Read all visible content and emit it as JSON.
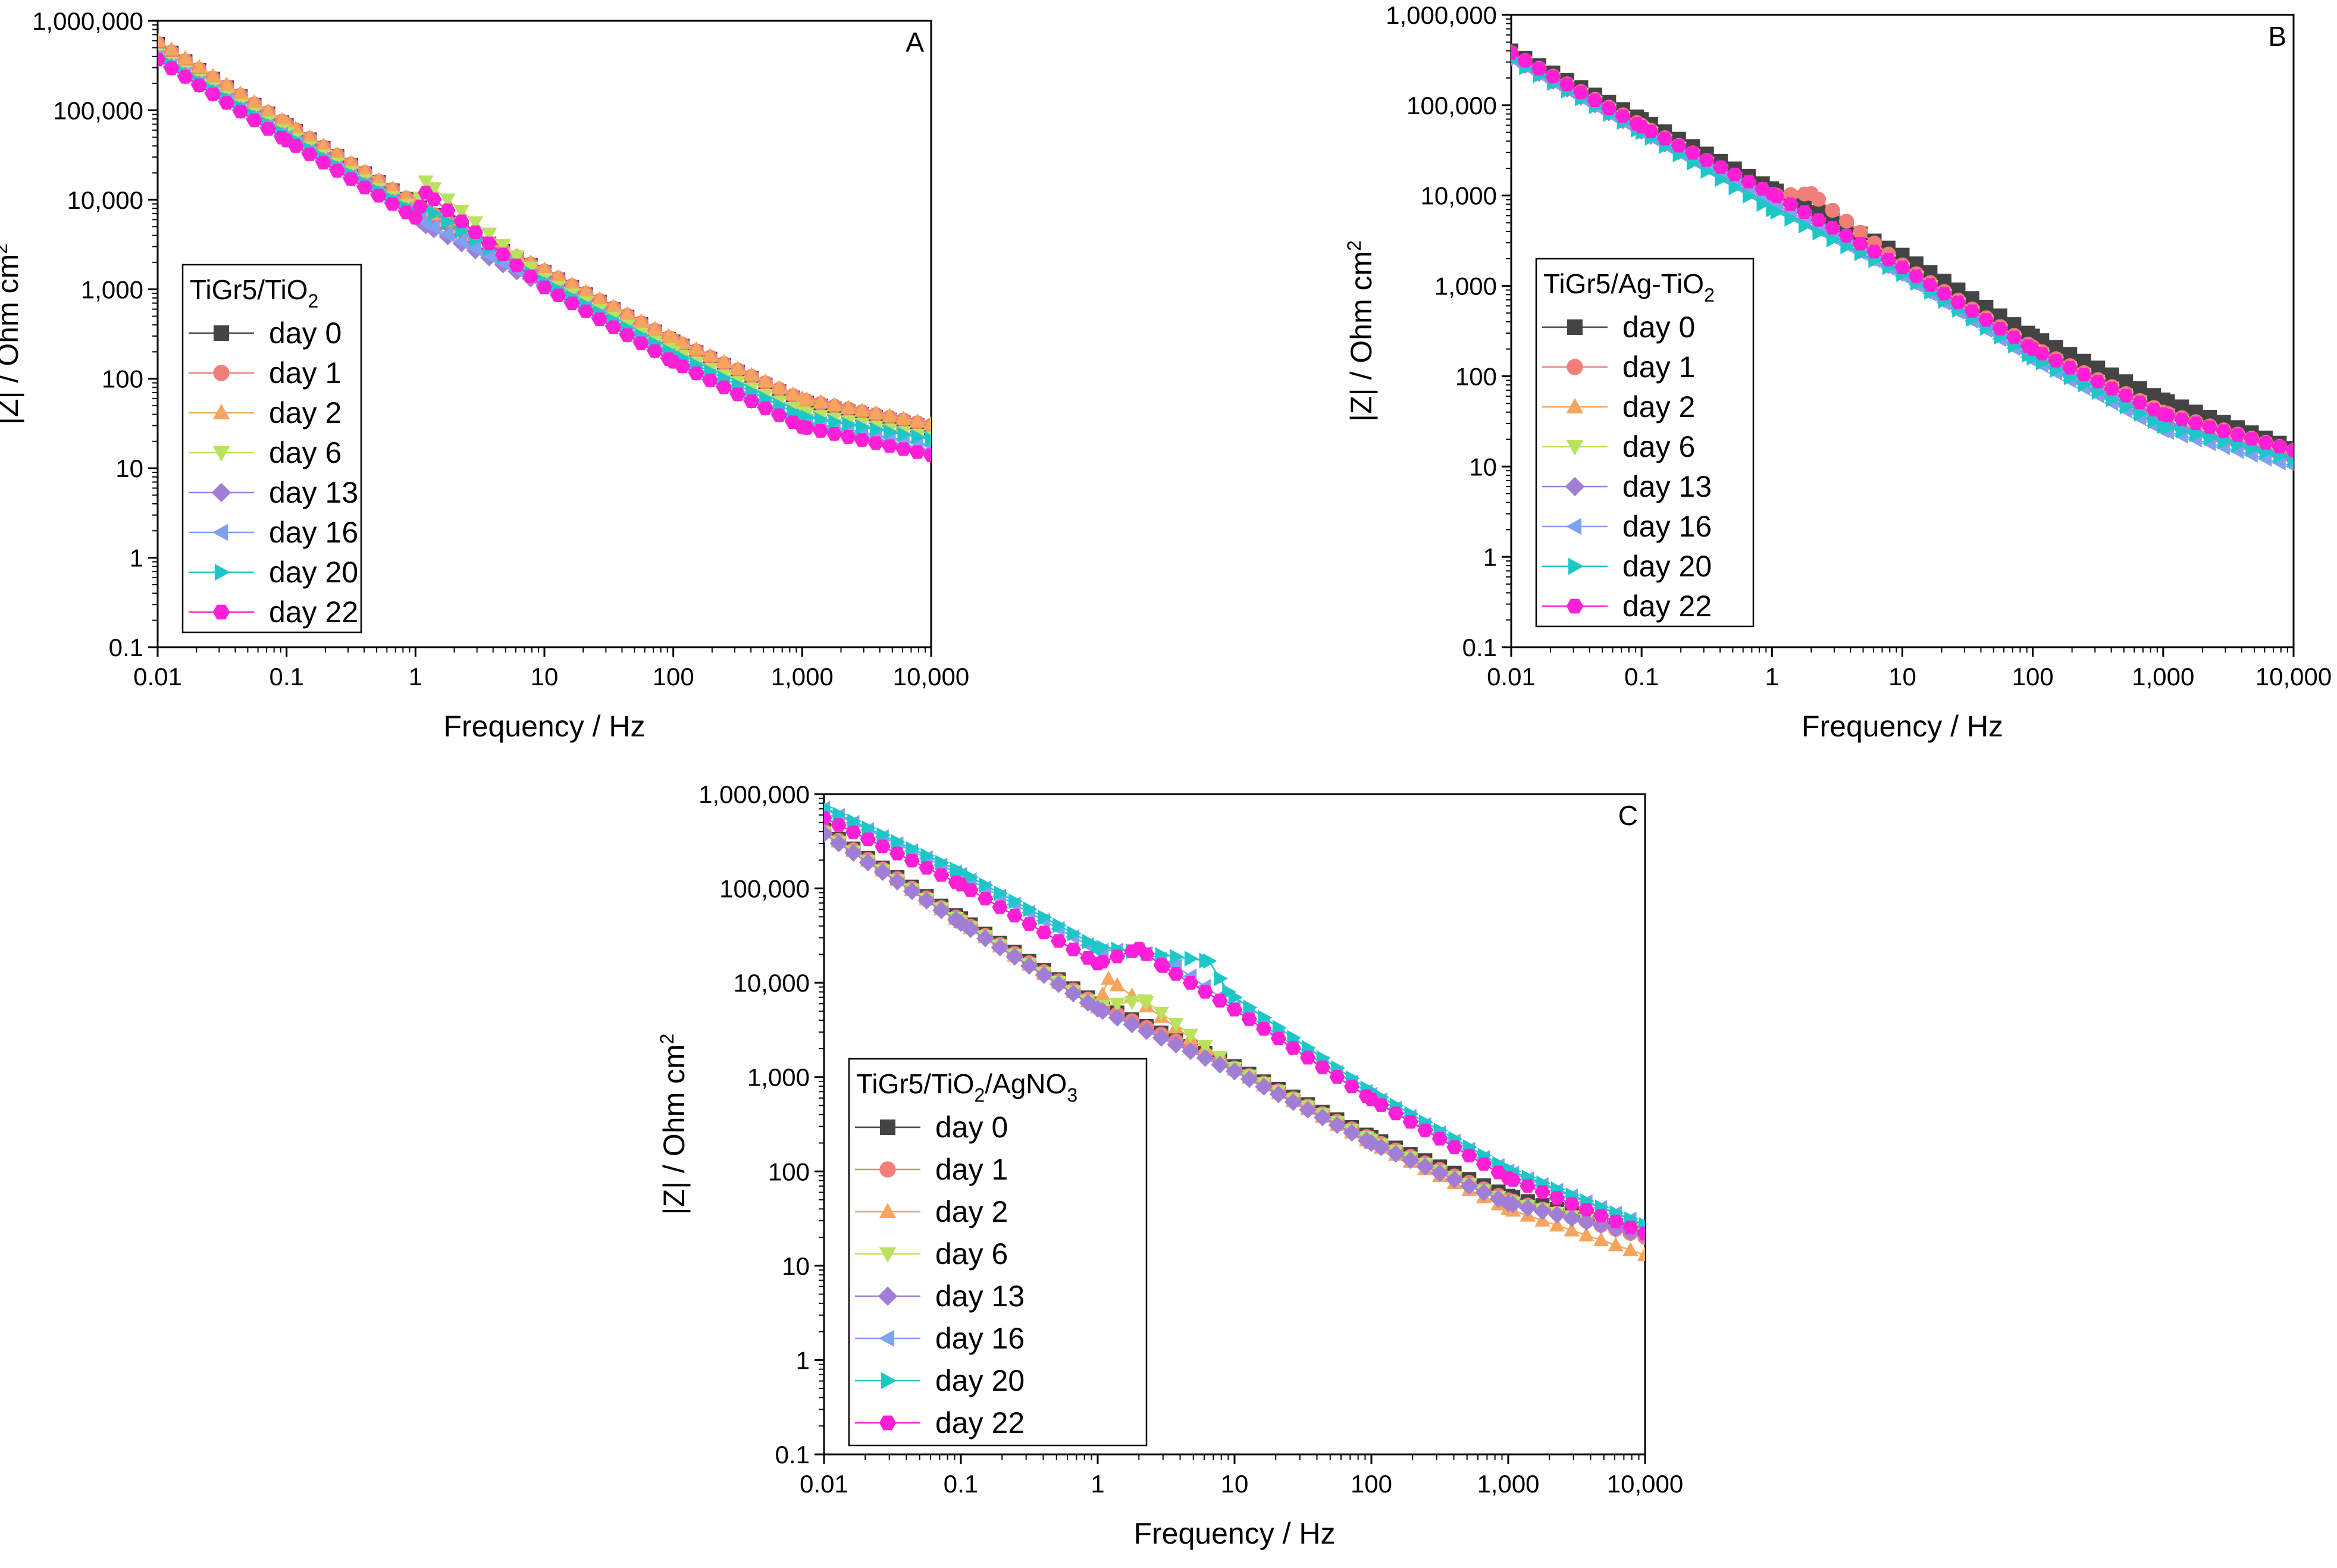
{
  "figure_title": "",
  "chart_data": [
    {
      "type": "scatter",
      "panel": "A",
      "legend_title": {
        "base": "TiGr5/TiO",
        "sub1": "2",
        "mid": "",
        "sub2": ""
      },
      "xlabel": "Frequency / Hz",
      "ylabel": {
        "base": "|Z| / Ohm cm",
        "sup": "2"
      },
      "xscale": "log",
      "yscale": "log",
      "xlim": [
        0.01,
        10000
      ],
      "ylim": [
        0.1,
        1000000
      ],
      "x_ticks": [
        "0.01",
        "0.1",
        "1",
        "10",
        "100",
        "1,000",
        "10,000"
      ],
      "y_ticks": [
        "0.1",
        "1",
        "10",
        "100",
        "1,000",
        "10,000",
        "100,000",
        "1,000,000"
      ],
      "legend_placement": "middle-left",
      "series": [
        {
          "name": "day 0",
          "color": "#444444",
          "marker": "square",
          "points": [
            [
              0.01,
              550000
            ],
            [
              0.1,
              68000
            ],
            [
              1,
              8800
            ],
            [
              1.2,
              7500
            ],
            [
              10,
              1550
            ],
            [
              100,
              260
            ],
            [
              1000,
              55
            ],
            [
              10000,
              28
            ]
          ]
        },
        {
          "name": "day 1",
          "color": "#f07f79",
          "marker": "circle",
          "points": [
            [
              0.01,
              560000
            ],
            [
              0.1,
              70000
            ],
            [
              1,
              9000
            ],
            [
              1.2,
              7600
            ],
            [
              10,
              1600
            ],
            [
              100,
              270
            ],
            [
              1000,
              58
            ],
            [
              10000,
              30
            ]
          ]
        },
        {
          "name": "day 2",
          "color": "#f5a55d",
          "marker": "triangle-up",
          "points": [
            [
              0.01,
              600000
            ],
            [
              0.1,
              72000
            ],
            [
              1,
              9200
            ],
            [
              1.2,
              7700
            ],
            [
              10,
              1650
            ],
            [
              100,
              280
            ],
            [
              1000,
              60
            ],
            [
              10000,
              31
            ]
          ]
        },
        {
          "name": "day 6",
          "color": "#b9e35f",
          "marker": "triangle-down",
          "points": [
            [
              0.01,
              420000
            ],
            [
              0.1,
              55000
            ],
            [
              1,
              7500
            ],
            [
              1.2,
              16000
            ],
            [
              10,
              1300
            ],
            [
              100,
              200
            ],
            [
              1000,
              42
            ],
            [
              10000,
              22
            ]
          ]
        },
        {
          "name": "day 13",
          "color": "#a17ed6",
          "marker": "diamond",
          "points": [
            [
              0.01,
              380000
            ],
            [
              0.1,
              48000
            ],
            [
              1,
              6500
            ],
            [
              1.2,
              5200
            ],
            [
              10,
              1100
            ],
            [
              100,
              160
            ],
            [
              1000,
              30
            ],
            [
              10000,
              15
            ]
          ]
        },
        {
          "name": "day 16",
          "color": "#7fa2f0",
          "marker": "triangle-left",
          "points": [
            [
              0.01,
              390000
            ],
            [
              0.1,
              50000
            ],
            [
              1,
              6800
            ],
            [
              1.2,
              5500
            ],
            [
              10,
              1150
            ],
            [
              100,
              170
            ],
            [
              1000,
              34
            ],
            [
              10000,
              18
            ]
          ]
        },
        {
          "name": "day 20",
          "color": "#1ec7c7",
          "marker": "triangle-right",
          "points": [
            [
              0.01,
              400000
            ],
            [
              0.1,
              52000
            ],
            [
              1,
              7000
            ],
            [
              1.2,
              8000
            ],
            [
              10,
              1200
            ],
            [
              100,
              190
            ],
            [
              1000,
              38
            ],
            [
              10000,
              21
            ]
          ]
        },
        {
          "name": "day 22",
          "color": "#ff1fd6",
          "marker": "hexagon",
          "points": [
            [
              0.01,
              370000
            ],
            [
              0.1,
              46000
            ],
            [
              1,
              6300
            ],
            [
              1.2,
              12000
            ],
            [
              10,
              1050
            ],
            [
              100,
              155
            ],
            [
              1000,
              29
            ],
            [
              10000,
              14
            ]
          ]
        }
      ]
    },
    {
      "type": "scatter",
      "panel": "B",
      "legend_title": {
        "base": "TiGr5/Ag-TiO",
        "sub1": "2",
        "mid": "",
        "sub2": ""
      },
      "xlabel": "Frequency / Hz",
      "ylabel": {
        "base": "|Z| / Ohm cm",
        "sup": "2"
      },
      "xscale": "log",
      "yscale": "log",
      "xlim": [
        0.01,
        10000
      ],
      "ylim": [
        0.1,
        1000000
      ],
      "x_ticks": [
        "0.01",
        "0.1",
        "1",
        "10",
        "100",
        "1,000",
        "10,000"
      ],
      "y_ticks": [
        "0.1",
        "1",
        "10",
        "100",
        "1,000",
        "10,000",
        "100,000",
        "1,000,000"
      ],
      "legend_placement": "middle-left",
      "series": [
        {
          "name": "day 0",
          "color": "#444444",
          "marker": "square",
          "points": [
            [
              0.01,
              400000
            ],
            [
              0.1,
              70000
            ],
            [
              1,
              12000
            ],
            [
              10,
              2200
            ],
            [
              100,
              280
            ],
            [
              1000,
              55
            ],
            [
              10000,
              16
            ]
          ]
        },
        {
          "name": "day 1",
          "color": "#f07f79",
          "marker": "circle",
          "points": [
            [
              0.01,
              380000
            ],
            [
              0.1,
              60000
            ],
            [
              1,
              10000
            ],
            [
              2,
              10500
            ],
            [
              10,
              1700
            ],
            [
              100,
              210
            ],
            [
              1000,
              40
            ],
            [
              10000,
              15
            ]
          ]
        },
        {
          "name": "day 2",
          "color": "#f5a55d",
          "marker": "triangle-up",
          "points": [
            [
              0.01,
              370000
            ],
            [
              0.1,
              58000
            ],
            [
              1,
              9500
            ],
            [
              10,
              1600
            ],
            [
              100,
              200
            ],
            [
              1000,
              38
            ],
            [
              10000,
              14
            ]
          ]
        },
        {
          "name": "day 6",
          "color": "#b9e35f",
          "marker": "triangle-down",
          "points": [
            [
              0.01,
              360000
            ],
            [
              0.1,
              56000
            ],
            [
              1,
              9200
            ],
            [
              10,
              1550
            ],
            [
              100,
              190
            ],
            [
              1000,
              36
            ],
            [
              10000,
              13
            ]
          ]
        },
        {
          "name": "day 13",
          "color": "#a17ed6",
          "marker": "diamond",
          "points": [
            [
              0.01,
              340000
            ],
            [
              0.1,
              52000
            ],
            [
              1,
              8500
            ],
            [
              10,
              1400
            ],
            [
              100,
              170
            ],
            [
              1000,
              30
            ],
            [
              10000,
              12
            ]
          ]
        },
        {
          "name": "day 16",
          "color": "#7fa2f0",
          "marker": "triangle-left",
          "points": [
            [
              0.01,
              330000
            ],
            [
              0.1,
              50000
            ],
            [
              1,
              8000
            ],
            [
              10,
              1300
            ],
            [
              100,
              150
            ],
            [
              1000,
              25
            ],
            [
              10000,
              10
            ]
          ]
        },
        {
          "name": "day 20",
          "color": "#1ec7c7",
          "marker": "triangle-right",
          "points": [
            [
              0.01,
              320000
            ],
            [
              0.1,
              50000
            ],
            [
              1,
              7000
            ],
            [
              10,
              1350
            ],
            [
              100,
              160
            ],
            [
              1000,
              28
            ],
            [
              10000,
              12
            ]
          ]
        },
        {
          "name": "day 22",
          "color": "#ff1fd6",
          "marker": "hexagon",
          "points": [
            [
              0.01,
              380000
            ],
            [
              0.1,
              58000
            ],
            [
              1,
              10500
            ],
            [
              10,
              1600
            ],
            [
              100,
              200
            ],
            [
              1000,
              38
            ],
            [
              10000,
              15
            ]
          ]
        }
      ]
    },
    {
      "type": "scatter",
      "panel": "C",
      "legend_title": {
        "base": "TiGr5/TiO",
        "sub1": "2",
        "mid": "/AgNO",
        "sub2": "3"
      },
      "xlabel": "Frequency / Hz",
      "ylabel": {
        "base": "|Z| / Ohm cm",
        "sup": "2"
      },
      "xscale": "log",
      "yscale": "log",
      "xlim": [
        0.01,
        10000
      ],
      "ylim": [
        0.1,
        1000000
      ],
      "x_ticks": [
        "0.01",
        "0.1",
        "1",
        "10",
        "100",
        "1,000",
        "10,000"
      ],
      "y_ticks": [
        "0.1",
        "1",
        "10",
        "100",
        "1,000",
        "10,000",
        "100,000",
        "1,000,000"
      ],
      "legend_placement": "middle-left",
      "series": [
        {
          "name": "day 0",
          "color": "#444444",
          "marker": "square",
          "points": [
            [
              0.01,
              420000
            ],
            [
              0.1,
              48000
            ],
            [
              1,
              6000
            ],
            [
              10,
              1300
            ],
            [
              100,
              230
            ],
            [
              1000,
              55
            ],
            [
              10000,
              22
            ]
          ]
        },
        {
          "name": "day 1",
          "color": "#f07f79",
          "marker": "circle",
          "points": [
            [
              0.01,
              410000
            ],
            [
              0.1,
              46000
            ],
            [
              1,
              5800
            ],
            [
              10,
              1250
            ],
            [
              100,
              220
            ],
            [
              1000,
              50
            ],
            [
              10000,
              20
            ]
          ]
        },
        {
          "name": "day 2",
          "color": "#f5a55d",
          "marker": "triangle-up",
          "points": [
            [
              0.01,
              400000
            ],
            [
              0.1,
              44000
            ],
            [
              1,
              5500
            ],
            [
              1.2,
              11000
            ],
            [
              10,
              1200
            ],
            [
              100,
              200
            ],
            [
              1000,
              40
            ],
            [
              10000,
              13
            ]
          ]
        },
        {
          "name": "day 6",
          "color": "#b9e35f",
          "marker": "triangle-down",
          "points": [
            [
              0.01,
              390000
            ],
            [
              0.1,
              45000
            ],
            [
              1,
              5600
            ],
            [
              2.2,
              6500
            ],
            [
              10,
              1250
            ],
            [
              100,
              215
            ],
            [
              1000,
              48
            ],
            [
              10000,
              22
            ]
          ]
        },
        {
          "name": "day 13",
          "color": "#a17ed6",
          "marker": "diamond",
          "points": [
            [
              0.01,
              380000
            ],
            [
              0.1,
              43000
            ],
            [
              1,
              5300
            ],
            [
              10,
              1150
            ],
            [
              100,
              200
            ],
            [
              1000,
              46
            ],
            [
              10000,
              21
            ]
          ]
        },
        {
          "name": "day 16",
          "color": "#7fa2f0",
          "marker": "triangle-left",
          "points": [
            [
              0.01,
              700000
            ],
            [
              0.1,
              140000
            ],
            [
              1,
              22000
            ],
            [
              2,
              22000
            ],
            [
              3.5,
              16000
            ],
            [
              10,
              5500
            ],
            [
              100,
              650
            ],
            [
              1000,
              100
            ],
            [
              10000,
              27
            ]
          ]
        },
        {
          "name": "day 20",
          "color": "#1ec7c7",
          "marker": "triangle-right",
          "points": [
            [
              0.01,
              720000
            ],
            [
              0.1,
              150000
            ],
            [
              1,
              24000
            ],
            [
              6.5,
              17000
            ],
            [
              9,
              8000
            ],
            [
              10,
              7000
            ],
            [
              100,
              700
            ],
            [
              1000,
              105
            ],
            [
              10000,
              27
            ]
          ]
        },
        {
          "name": "day 22",
          "color": "#ff1fd6",
          "marker": "hexagon",
          "points": [
            [
              0.01,
              560000
            ],
            [
              0.1,
              110000
            ],
            [
              1,
              16000
            ],
            [
              2,
              23000
            ],
            [
              3,
              15000
            ],
            [
              10,
              5200
            ],
            [
              100,
              580
            ],
            [
              1000,
              85
            ],
            [
              10000,
              22
            ]
          ]
        }
      ]
    }
  ]
}
